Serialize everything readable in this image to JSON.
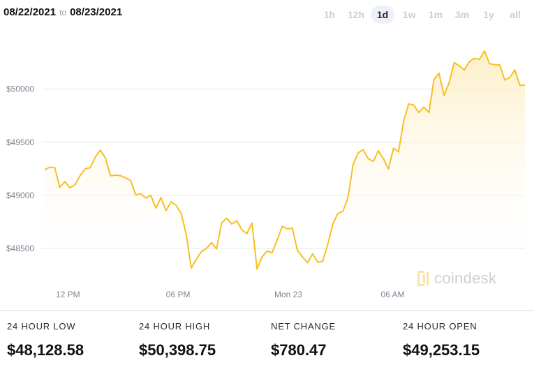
{
  "header": {
    "date_from": "08/22/2021",
    "to_label": "to",
    "date_to": "08/23/2021"
  },
  "ranges": [
    {
      "label": "1h",
      "active": false
    },
    {
      "label": "12h",
      "active": false
    },
    {
      "label": "1d",
      "active": true
    },
    {
      "label": "1w",
      "active": false
    },
    {
      "label": "1m",
      "active": false
    },
    {
      "label": "3m",
      "active": false
    },
    {
      "label": "1y",
      "active": false
    },
    {
      "label": "all",
      "active": false
    }
  ],
  "watermark": "coindesk",
  "colors": {
    "line": "#f6c021",
    "fill_top": "#fdeec4",
    "grid": "#e3e6ea",
    "axis_text": "#7c8590",
    "active_tab_bg": "#eef1f6"
  },
  "chart_data": {
    "type": "area",
    "series": [
      {
        "values": [
          49240,
          49265,
          49260,
          49075,
          49130,
          49070,
          49100,
          49185,
          49250,
          49260,
          49360,
          49425,
          49355,
          49185,
          49190,
          49185,
          49165,
          49140,
          49005,
          49015,
          48975,
          49000,
          48880,
          48980,
          48855,
          48940,
          48905,
          48830,
          48630,
          48315,
          48400,
          48470,
          48500,
          48555,
          48495,
          48740,
          48785,
          48730,
          48760,
          48675,
          48640,
          48740,
          48305,
          48420,
          48475,
          48460,
          48580,
          48710,
          48685,
          48690,
          48480,
          48420,
          48365,
          48450,
          48370,
          48380,
          48540,
          48730,
          48830,
          48850,
          48980,
          49290,
          49400,
          49430,
          49345,
          49320,
          49420,
          49345,
          49250,
          49445,
          49410,
          49700,
          49860,
          49850,
          49780,
          49830,
          49780,
          50090,
          50150,
          49940,
          50060,
          50250,
          50220,
          50180,
          50260,
          50290,
          50280,
          50360,
          50240,
          50230,
          50230,
          50085,
          50110,
          50180,
          50035,
          50040
        ]
      }
    ],
    "ylim": [
      48250,
      50550
    ],
    "y_ticks": [
      48500,
      49000,
      49500,
      50000
    ],
    "y_tick_labels": [
      "$48500",
      "$49000",
      "$49500",
      "$50000"
    ],
    "x_ticks": [
      {
        "label": "12 PM",
        "index": 10
      },
      {
        "label": "06 PM",
        "index": 57.5
      },
      {
        "label": "Mon 23",
        "index": 105
      },
      {
        "label": "06 AM",
        "index": 150
      }
    ],
    "x_tick_count": 208,
    "grid": true
  },
  "stats": [
    {
      "label": "24 HOUR LOW",
      "value": "$48,128.58"
    },
    {
      "label": "24 HOUR HIGH",
      "value": "$50,398.75"
    },
    {
      "label": "NET CHANGE",
      "value": "$780.47"
    },
    {
      "label": "24 HOUR OPEN",
      "value": "$49,253.15"
    }
  ]
}
